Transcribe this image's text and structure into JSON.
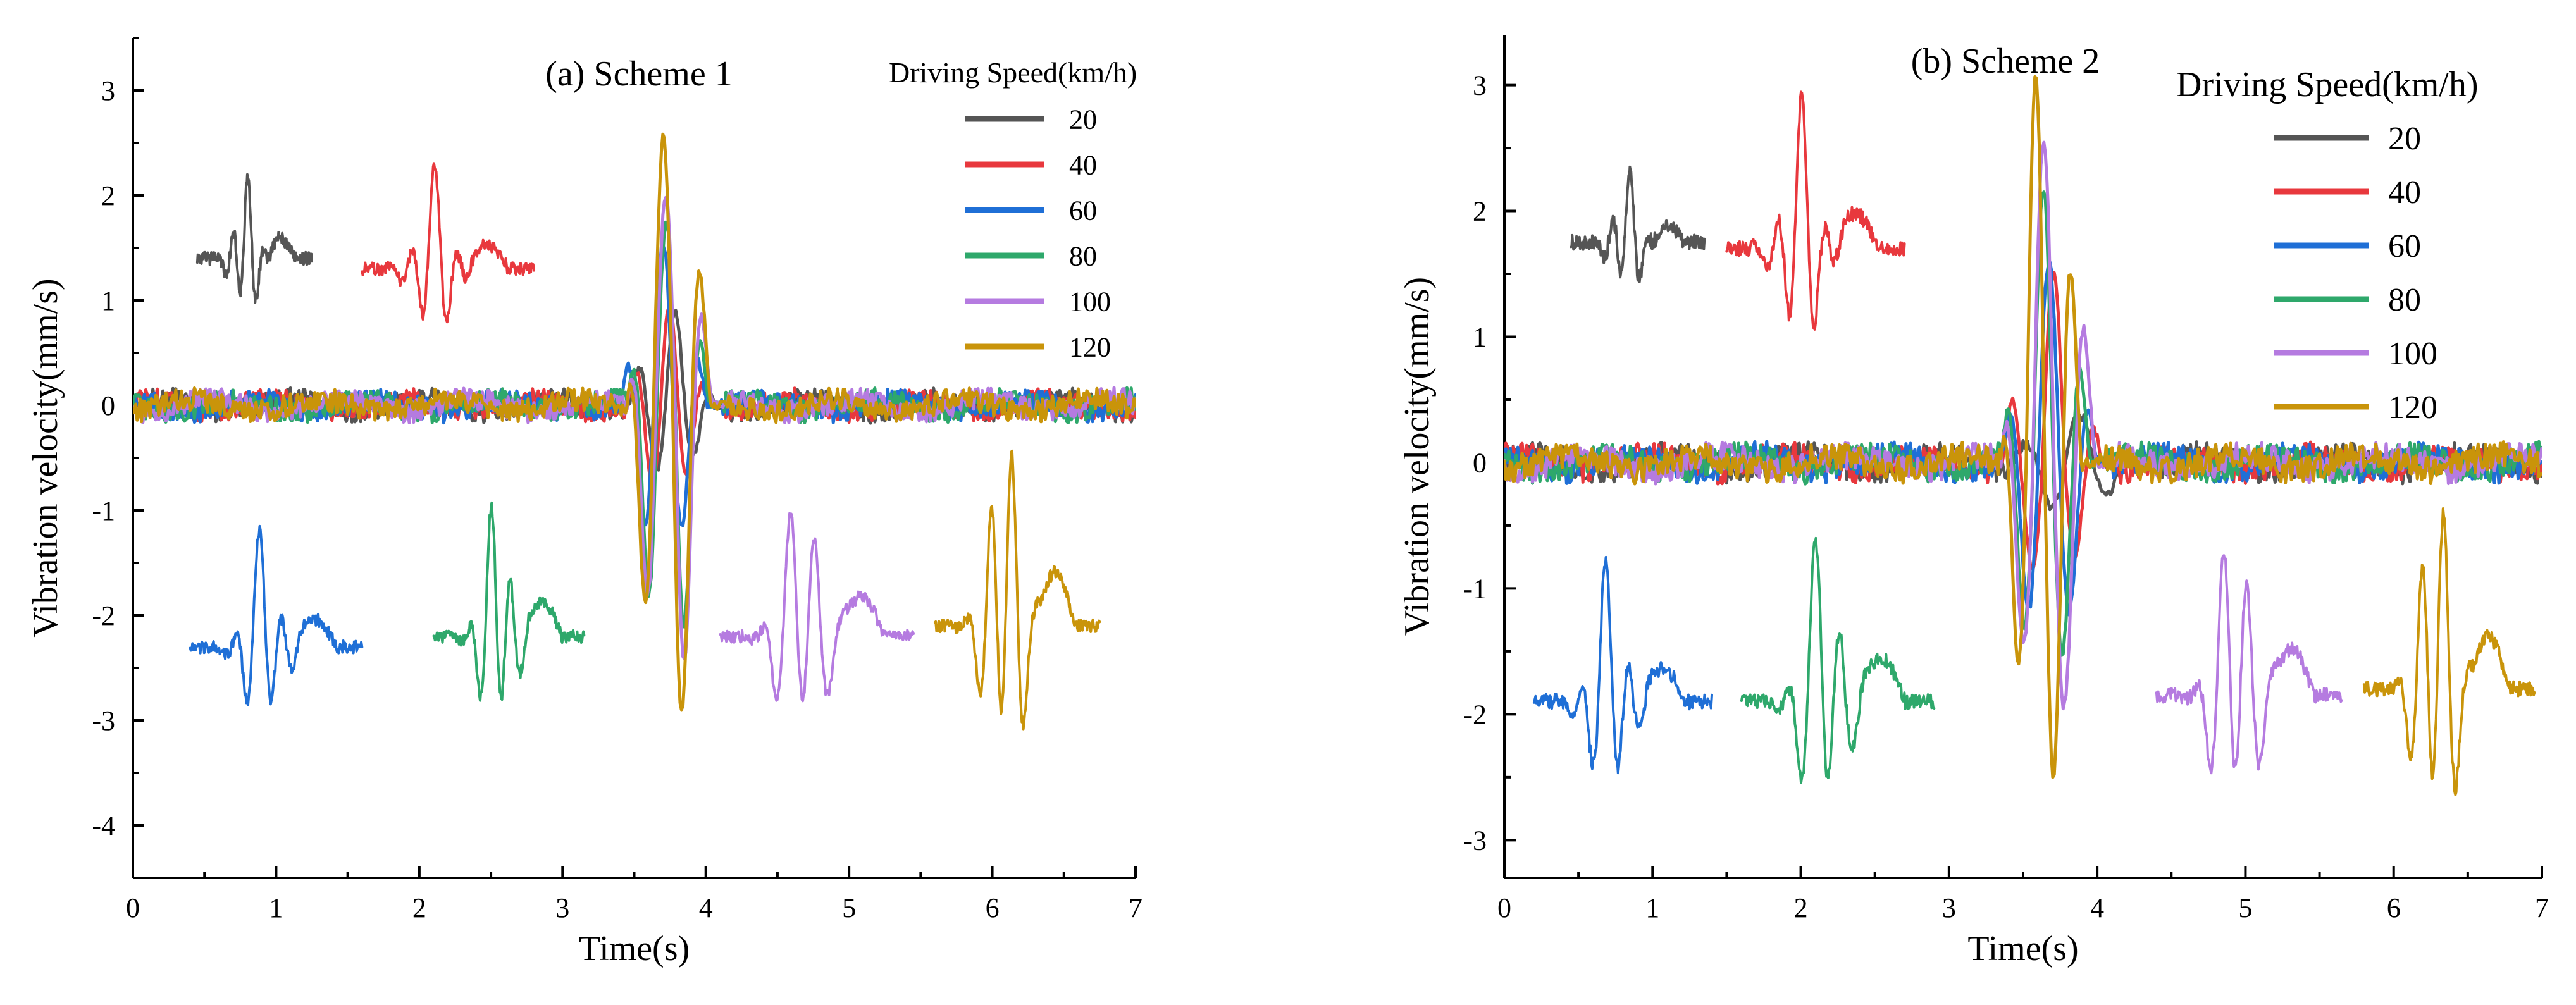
{
  "chart_data": [
    {
      "type": "line",
      "panel": "a",
      "title": "(a) Scheme 1",
      "xlabel": "Time(s)",
      "ylabel": "Vibration velocity(mm/s)",
      "xlim": [
        0,
        7
      ],
      "ylim": [
        -4.5,
        3.5
      ],
      "xticks": [
        0,
        1,
        2,
        3,
        4,
        5,
        6,
        7
      ],
      "yticks": [
        -4,
        -3,
        -2,
        -1,
        0,
        1,
        2,
        3
      ],
      "legend_title": "Driving Speed(km/h)",
      "legend_position": "top-right",
      "series": [
        {
          "name": "20",
          "color": "#555555",
          "peak_max": 0.9,
          "peak_min": -0.7,
          "burst": [
            3.45,
            3.65,
            3.75,
            3.82,
            3.9,
            4.0
          ]
        },
        {
          "name": "40",
          "color": "#e8383d",
          "peak_max": 0.95,
          "peak_min": -0.9,
          "burst": [
            3.45,
            3.6,
            3.7,
            3.78,
            3.86,
            3.95
          ]
        },
        {
          "name": "60",
          "color": "#1f6fd6",
          "peak_max": 1.55,
          "peak_min": -1.45,
          "burst": [
            3.4,
            3.52,
            3.65,
            3.72,
            3.85,
            3.95
          ]
        },
        {
          "name": "80",
          "color": "#2ea86b",
          "peak_max": 1.75,
          "peak_min": -2.5,
          "burst": [
            3.45,
            3.55,
            3.68,
            3.75,
            3.86,
            3.97
          ]
        },
        {
          "name": "100",
          "color": "#b57be0",
          "peak_max": 2.05,
          "peak_min": -2.75,
          "burst": [
            3.45,
            3.55,
            3.7,
            3.78,
            3.9,
            4.0
          ]
        },
        {
          "name": "120",
          "color": "#c9940a",
          "peak_max": 2.65,
          "peak_min": -3.2,
          "burst": [
            3.45,
            3.55,
            3.7,
            3.8,
            3.9,
            4.0
          ]
        }
      ],
      "insets": [
        {
          "series": "20",
          "t_start": 0.45,
          "t_end": 1.25,
          "center": 1.4,
          "amp": 0.75
        },
        {
          "series": "40",
          "t_start": 1.6,
          "t_end": 2.8,
          "center": 1.3,
          "amp": 0.9
        },
        {
          "series": "60",
          "t_start": 0.4,
          "t_end": 1.6,
          "center": -2.3,
          "amp": 1.05
        },
        {
          "series": "80",
          "t_start": 2.1,
          "t_end": 3.15,
          "center": -2.2,
          "amp": 1.3
        },
        {
          "series": "100",
          "t_start": 4.1,
          "t_end": 5.45,
          "center": -2.2,
          "amp": 1.5
        },
        {
          "series": "120",
          "t_start": 5.6,
          "t_end": 6.75,
          "center": -2.1,
          "amp": 2.0
        }
      ]
    },
    {
      "type": "line",
      "panel": "b",
      "title": "(b) Scheme 2",
      "xlabel": "Time(s)",
      "ylabel": "Vibration velocity(mm/s)",
      "xlim": [
        0,
        7
      ],
      "ylim": [
        -3.3,
        3.4
      ],
      "xticks": [
        0,
        1,
        2,
        3,
        4,
        5,
        6,
        7
      ],
      "yticks": [
        -3,
        -2,
        -1,
        0,
        1,
        2,
        3
      ],
      "legend_title": "Driving Speed(km/h)",
      "legend_position": "top-right",
      "series": [
        {
          "name": "20",
          "color": "#555555",
          "peak_max": 0.4,
          "peak_min": -0.4,
          "burst": [
            3.4,
            3.65,
            3.8,
            4.0,
            4.15,
            4.25
          ]
        },
        {
          "name": "40",
          "color": "#e8383d",
          "peak_max": 1.5,
          "peak_min": -1.0,
          "burst": [
            3.35,
            3.55,
            3.7,
            3.8,
            3.88,
            3.98
          ]
        },
        {
          "name": "60",
          "color": "#1f6fd6",
          "peak_max": 1.6,
          "peak_min": -1.5,
          "burst": [
            3.35,
            3.5,
            3.62,
            3.7,
            3.82,
            3.95
          ]
        },
        {
          "name": "80",
          "color": "#2ea86b",
          "peak_max": 2.2,
          "peak_min": -1.8,
          "burst": [
            3.35,
            3.5,
            3.6,
            3.68,
            3.78,
            3.9
          ]
        },
        {
          "name": "100",
          "color": "#b57be0",
          "peak_max": 2.6,
          "peak_min": -2.2,
          "burst": [
            3.35,
            3.5,
            3.6,
            3.7,
            3.8,
            3.95
          ]
        },
        {
          "name": "120",
          "color": "#c9940a",
          "peak_max": 3.2,
          "peak_min": -2.7,
          "burst": [
            3.35,
            3.5,
            3.58,
            3.66,
            3.74,
            3.85
          ]
        }
      ],
      "insets": [
        {
          "series": "20",
          "t_start": 0.45,
          "t_end": 1.35,
          "center": 1.75,
          "amp": 0.55
        },
        {
          "series": "40",
          "t_start": 1.5,
          "t_end": 2.7,
          "center": 1.7,
          "amp": 1.1
        },
        {
          "series": "60",
          "t_start": 0.2,
          "t_end": 1.4,
          "center": -1.9,
          "amp": 1.05
        },
        {
          "series": "80",
          "t_start": 1.6,
          "t_end": 2.9,
          "center": -1.9,
          "amp": 1.35
        },
        {
          "series": "100",
          "t_start": 4.4,
          "t_end": 5.65,
          "center": -1.85,
          "amp": 1.45
        },
        {
          "series": "120",
          "t_start": 5.8,
          "t_end": 6.95,
          "center": -1.8,
          "amp": 1.7
        }
      ]
    }
  ]
}
